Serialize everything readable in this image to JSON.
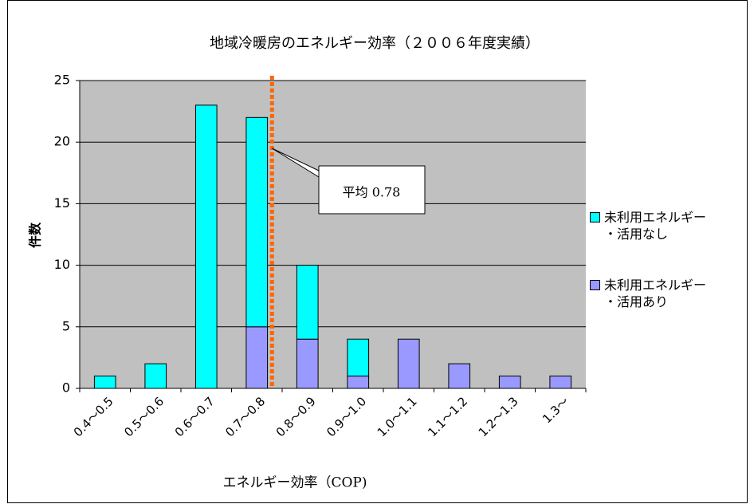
{
  "chart_data": {
    "type": "bar",
    "stacked": true,
    "title": "地域冷暖房のエネルギー効率（２００６年度実績）",
    "x_label": "エネルギー効率（COP)",
    "y_label": "件数",
    "categories": [
      "0.4～0.5",
      "0.5～0.6",
      "0.6～0.7",
      "0.7～0.8",
      "0.8～0.9",
      "0.9～1.0",
      "1.0～1.1",
      "1.1～1.2",
      "1.2～1.3",
      "1.3～"
    ],
    "series": [
      {
        "name": "未利用エネルギー・活用あり",
        "color": "#9999ff",
        "values": [
          0,
          0,
          0,
          5,
          4,
          1,
          4,
          2,
          1,
          1
        ]
      },
      {
        "name": "未利用エネルギー・活用なし",
        "color": "#00ffff",
        "values": [
          1,
          2,
          23,
          17,
          6,
          3,
          0,
          0,
          0,
          0
        ]
      }
    ],
    "xlim": [
      0.4,
      1.4
    ],
    "ylim": [
      0,
      25
    ],
    "yticks": [
      0,
      5,
      10,
      15,
      20,
      25
    ],
    "grid": true,
    "mean_line": {
      "value": 0.78,
      "label": "平均 0.78",
      "color": "#ff6600"
    }
  }
}
